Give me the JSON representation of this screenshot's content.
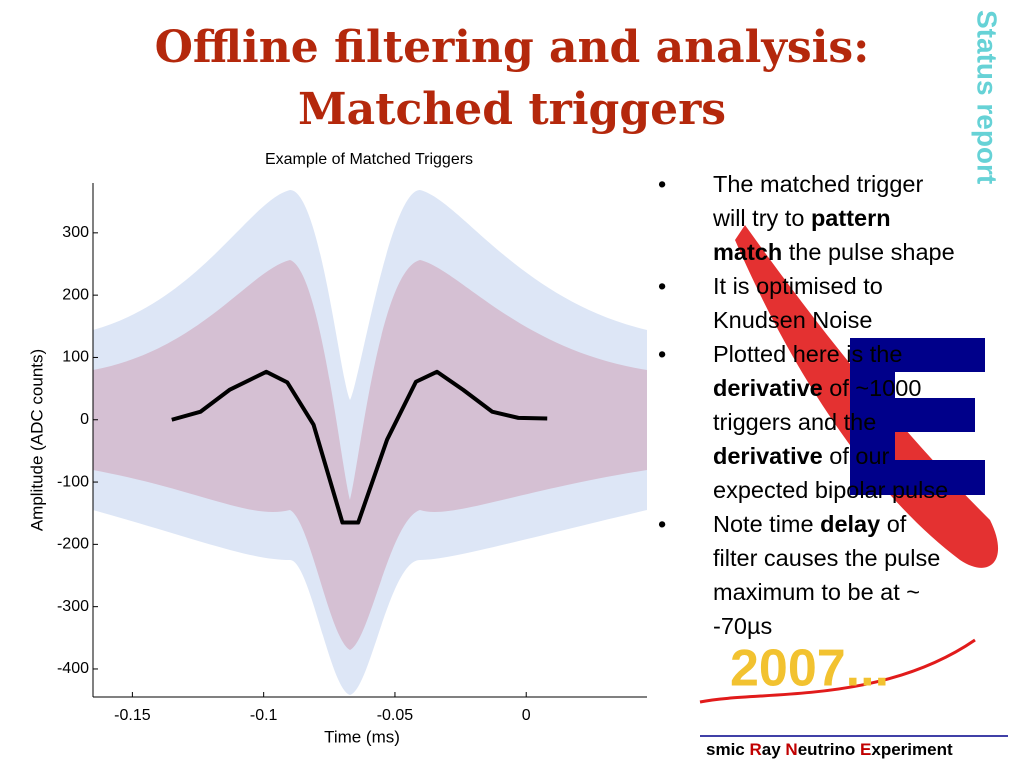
{
  "title_lines": [
    "Offline filtering and analysis:",
    "Matched triggers"
  ],
  "sidebar": "Status report",
  "year_badge": "2007...",
  "bullets": [
    [
      {
        "text": "The matched trigger will try to ",
        "bold": false
      },
      {
        "text": "pattern match",
        "bold": true
      },
      {
        "text": " the pulse shape",
        "bold": false
      }
    ],
    [
      {
        "text": "It is optimised to Knudsen Noise",
        "bold": false
      }
    ],
    [
      {
        "text": "Plotted here is the ",
        "bold": false
      },
      {
        "text": "derivative",
        "bold": true
      },
      {
        "text": " of ~1000 triggers and the ",
        "bold": false
      },
      {
        "text": "derivative",
        "bold": true
      },
      {
        "text": " of our expected bipolar pulse",
        "bold": false
      }
    ],
    [
      {
        "text": "Note time ",
        "bold": false
      },
      {
        "text": "delay",
        "bold": true
      },
      {
        "text": " of filter causes the pulse maximum to be at ~ -70µs",
        "bold": false
      }
    ]
  ],
  "bullet_symbol": "•",
  "footer": [
    {
      "text": "smic ",
      "accent": false
    },
    {
      "text": "R",
      "accent": true
    },
    {
      "text": "ay ",
      "accent": false
    },
    {
      "text": "N",
      "accent": true
    },
    {
      "text": "eutrino ",
      "accent": false
    },
    {
      "text": "E",
      "accent": true
    },
    {
      "text": "xperiment",
      "accent": false
    }
  ],
  "chart_data": {
    "type": "line",
    "title": "Example of Matched  Triggers",
    "x_label": "Time (ms)",
    "y_label": "Amplitude (ADC counts)",
    "x": [
      -0.135,
      -0.124,
      -0.113,
      -0.099,
      -0.091,
      -0.081,
      -0.07,
      -0.064,
      -0.053,
      -0.042,
      -0.034,
      -0.024,
      -0.013,
      -0.003,
      0.008
    ],
    "series": [
      {
        "color": "#000000",
        "values": [
          0,
          13,
          48,
          77,
          60,
          -8,
          -165,
          -165,
          -32,
          61,
          77,
          48,
          13,
          3,
          2
        ]
      }
    ],
    "xlim": [
      -0.165,
      0.046
    ],
    "ylim": [
      -445,
      380
    ],
    "xticks": [
      -0.15,
      -0.1,
      -0.05,
      0
    ],
    "yticks": [
      300,
      200,
      100,
      0,
      -100,
      -200,
      -300,
      -400
    ]
  }
}
